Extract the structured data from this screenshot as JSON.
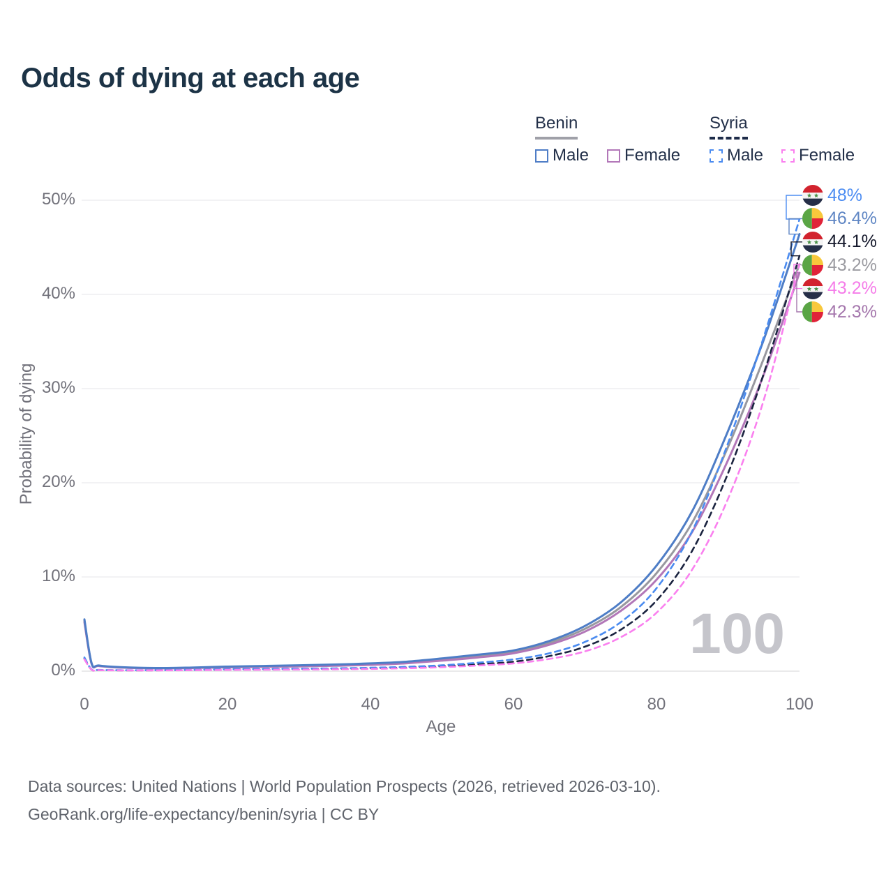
{
  "title": "Odds of dying at each age",
  "legend": {
    "groups": [
      {
        "name": "Benin",
        "line_style": "solid",
        "underline_color": "#9fa0a8",
        "items": [
          {
            "label": "Male",
            "color": "#4e7dc6"
          },
          {
            "label": "Female",
            "color": "#b277b8"
          }
        ]
      },
      {
        "name": "Syria",
        "line_style": "dashed",
        "underline_color": "#1e2c49",
        "items": [
          {
            "label": "Male",
            "color": "#4a8bf0"
          },
          {
            "label": "Female",
            "color": "#fa80ef"
          }
        ]
      }
    ]
  },
  "watermark": "100",
  "end_labels": [
    {
      "series": "syria-male",
      "value": "48%",
      "color": "#4d8df2",
      "flag": "syria"
    },
    {
      "series": "benin-male",
      "value": "46.4%",
      "color": "#5f86c4",
      "flag": "benin"
    },
    {
      "series": "syria-both",
      "value": "44.1%",
      "color": "#14182b",
      "flag": "syria"
    },
    {
      "series": "benin-both",
      "value": "43.2%",
      "color": "#9b9ba1",
      "flag": "benin"
    },
    {
      "series": "syria-female",
      "value": "43.2%",
      "color": "#f57de9",
      "flag": "syria"
    },
    {
      "series": "benin-female",
      "value": "42.3%",
      "color": "#a577ad",
      "flag": "benin"
    }
  ],
  "footer": {
    "line1": "Data sources: United Nations | World Population Prospects (2026, retrieved 2026-03-10).",
    "line2": "GeoRank.org/life-expectancy/benin/syria | CC BY"
  },
  "chart_data": {
    "type": "line",
    "title": "Odds of dying at each age",
    "xlabel": "Age",
    "ylabel": "Probability of dying",
    "xlim": [
      0,
      100
    ],
    "ylim": [
      0,
      50
    ],
    "x_ticks": [
      0,
      20,
      40,
      60,
      80,
      100
    ],
    "y_ticks": [
      "0%",
      "10%",
      "20%",
      "30%",
      "40%",
      "50%"
    ],
    "grid": "horizontal",
    "legend_position": "top-right",
    "ages": [
      0,
      1,
      2,
      5,
      10,
      15,
      20,
      25,
      30,
      35,
      40,
      45,
      50,
      55,
      60,
      65,
      70,
      75,
      80,
      85,
      90,
      95,
      100
    ],
    "series": [
      {
        "id": "benin-both",
        "name": "Benin",
        "sex": "both",
        "color": "#98989f",
        "dashed": false,
        "values": [
          5.35,
          0.8,
          0.57,
          0.4,
          0.31,
          0.35,
          0.44,
          0.5,
          0.56,
          0.63,
          0.74,
          0.92,
          1.25,
          1.6,
          2.05,
          3.0,
          4.5,
          6.8,
          10.4,
          15.8,
          23.8,
          33.2,
          43.2
        ]
      },
      {
        "id": "benin-female",
        "name": "Benin Female",
        "sex": "female",
        "color": "#b277b8",
        "dashed": false,
        "values": [
          5.2,
          0.78,
          0.55,
          0.38,
          0.3,
          0.33,
          0.4,
          0.45,
          0.5,
          0.57,
          0.67,
          0.84,
          1.12,
          1.45,
          1.9,
          2.8,
          4.2,
          6.4,
          9.7,
          14.8,
          22.4,
          31.5,
          42.3
        ]
      },
      {
        "id": "benin-male",
        "name": "Benin Male",
        "sex": "male",
        "color": "#4e7dc6",
        "dashed": false,
        "values": [
          5.5,
          0.85,
          0.6,
          0.42,
          0.33,
          0.38,
          0.48,
          0.55,
          0.62,
          0.7,
          0.82,
          1.0,
          1.35,
          1.75,
          2.2,
          3.2,
          4.8,
          7.3,
          11.2,
          17.0,
          25.5,
          35.2,
          46.4
        ]
      },
      {
        "id": "syria-both",
        "name": "Syria",
        "sex": "both",
        "color": "#1b2440",
        "dashed": true,
        "values": [
          1.35,
          0.16,
          0.11,
          0.09,
          0.09,
          0.12,
          0.17,
          0.19,
          0.22,
          0.25,
          0.3,
          0.39,
          0.52,
          0.73,
          1.0,
          1.6,
          2.6,
          4.4,
          7.5,
          12.8,
          21.0,
          31.6,
          44.1
        ]
      },
      {
        "id": "syria-male",
        "name": "Syria Male",
        "sex": "male",
        "color": "#4a8bf0",
        "dashed": true,
        "values": [
          1.45,
          0.18,
          0.13,
          0.1,
          0.1,
          0.14,
          0.2,
          0.23,
          0.26,
          0.3,
          0.36,
          0.46,
          0.62,
          0.9,
          1.25,
          1.9,
          3.1,
          5.2,
          8.8,
          14.9,
          24.2,
          35.5,
          48.0
        ]
      },
      {
        "id": "syria-female",
        "name": "Syria Female",
        "sex": "female",
        "color": "#fa80ef",
        "dashed": true,
        "values": [
          1.25,
          0.15,
          0.1,
          0.08,
          0.08,
          0.1,
          0.13,
          0.15,
          0.17,
          0.2,
          0.24,
          0.31,
          0.42,
          0.6,
          0.82,
          1.3,
          2.1,
          3.6,
          6.2,
          10.8,
          18.3,
          28.8,
          43.2
        ]
      }
    ]
  }
}
